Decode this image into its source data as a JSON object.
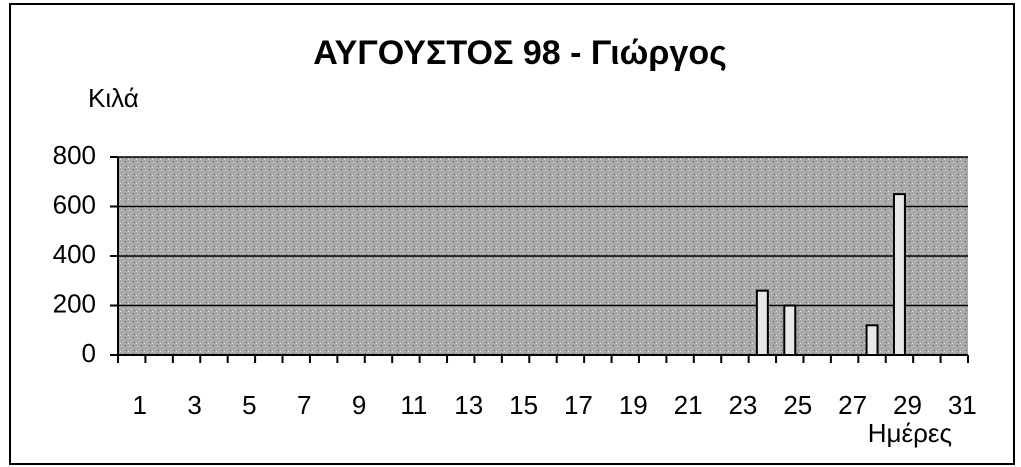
{
  "chart_data": {
    "type": "bar",
    "title": "ΑΥΓΟΥΣΤΟΣ 98 - Γιώργος",
    "y_label": "Κιλά",
    "x_label": "Ημέρες",
    "categories": [
      "1",
      null,
      "3",
      null,
      "5",
      null,
      "7",
      null,
      "9",
      null,
      "11",
      null,
      "13",
      null,
      "15",
      null,
      "17",
      null,
      "19",
      null,
      "21",
      null,
      "23",
      null,
      "25",
      null,
      "27",
      null,
      "29",
      null,
      "31"
    ],
    "values": [
      0,
      0,
      0,
      0,
      0,
      0,
      0,
      0,
      0,
      0,
      0,
      0,
      0,
      0,
      0,
      0,
      0,
      0,
      0,
      0,
      0,
      0,
      0,
      260,
      200,
      0,
      0,
      120,
      650,
      0,
      0
    ],
    "color": "#e8e8e8",
    "ylim": [
      0,
      800
    ],
    "yticks": [
      0,
      200,
      400,
      600,
      800
    ],
    "grid": true
  }
}
